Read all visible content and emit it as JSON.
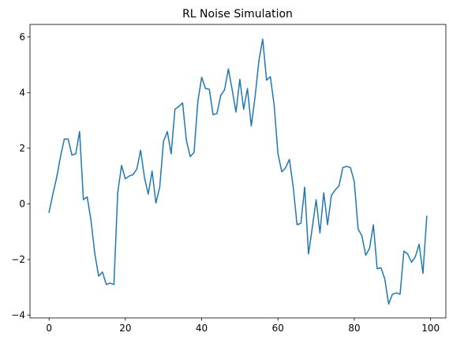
{
  "chart_data": {
    "type": "line",
    "title": "RL Noise Simulation",
    "xlabel": "",
    "ylabel": "",
    "xlim": [
      -5,
      104
    ],
    "ylim": [
      -4.1,
      6.45
    ],
    "xticks": [
      0,
      20,
      40,
      60,
      80,
      100
    ],
    "yticks": [
      -4,
      -2,
      0,
      2,
      4,
      6
    ],
    "grid": false,
    "legend": "none",
    "line_color": "#1f77b4",
    "series": [
      {
        "x": [
          0,
          1,
          2,
          3,
          4,
          5,
          6,
          7,
          8,
          9,
          10,
          11,
          12,
          13,
          14,
          15,
          16,
          17,
          18,
          19,
          20,
          21,
          22,
          23,
          24,
          25,
          26,
          27,
          28,
          29,
          30,
          31,
          32,
          33,
          34,
          35,
          36,
          37,
          38,
          39,
          40,
          41,
          42,
          43,
          44,
          45,
          46,
          47,
          48,
          49,
          50,
          51,
          52,
          53,
          54,
          55,
          56,
          57,
          58,
          59,
          60,
          61,
          62,
          63,
          64,
          65,
          66,
          67,
          68,
          69,
          70,
          71,
          72,
          73,
          74,
          75,
          76,
          77,
          78,
          79,
          80,
          81,
          82,
          83,
          84,
          85,
          86,
          87,
          88,
          89,
          90,
          91,
          92,
          93,
          94,
          95,
          96,
          97,
          98,
          99
        ],
        "values": [
          -0.3,
          0.35,
          0.95,
          1.7,
          2.33,
          2.33,
          1.75,
          1.8,
          2.6,
          0.15,
          0.25,
          -0.6,
          -1.8,
          -2.6,
          -2.45,
          -2.9,
          -2.85,
          -2.9,
          0.4,
          1.38,
          0.9,
          1.0,
          1.05,
          1.25,
          1.93,
          0.95,
          0.35,
          1.18,
          0.03,
          0.6,
          2.25,
          2.6,
          1.8,
          3.4,
          3.5,
          3.63,
          2.28,
          1.7,
          1.85,
          3.68,
          4.55,
          4.15,
          4.12,
          3.2,
          3.25,
          3.9,
          4.1,
          4.85,
          4.1,
          3.3,
          4.48,
          3.4,
          4.15,
          2.8,
          3.85,
          5.15,
          5.92,
          4.45,
          4.57,
          3.55,
          1.8,
          1.15,
          1.3,
          1.6,
          0.6,
          -0.75,
          -0.7,
          0.6,
          -1.8,
          -0.85,
          0.15,
          -1.05,
          0.4,
          -0.75,
          0.3,
          0.5,
          0.65,
          1.3,
          1.35,
          1.3,
          0.8,
          -0.9,
          -1.15,
          -1.85,
          -1.6,
          -0.75,
          -2.33,
          -2.3,
          -2.7,
          -3.6,
          -3.25,
          -3.2,
          -3.25,
          -1.7,
          -1.8,
          -2.1,
          -1.9,
          -1.45,
          -2.5,
          -0.45
        ]
      }
    ]
  }
}
